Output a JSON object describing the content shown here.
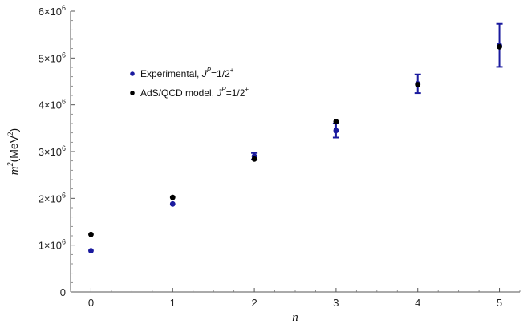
{
  "chart_data": {
    "type": "scatter",
    "title": "",
    "xlabel": "n",
    "ylabel_main": "m",
    "ylabel_sup": "2",
    "ylabel_unit": "(MeV",
    "ylabel_unit_sup": "2",
    "ylabel_close": ")",
    "xlim": [
      -0.25,
      5.25
    ],
    "ylim": [
      0,
      6000000
    ],
    "x_ticks": [
      0,
      1,
      2,
      3,
      4,
      5
    ],
    "x_tick_labels": [
      "0",
      "1",
      "2",
      "3",
      "4",
      "5"
    ],
    "y_ticks": [
      0,
      1000000,
      2000000,
      3000000,
      4000000,
      5000000,
      6000000
    ],
    "y_tick_labels": [
      {
        "mant": "0",
        "sup": ""
      },
      {
        "mant": "1×10",
        "sup": "6"
      },
      {
        "mant": "2×10",
        "sup": "6"
      },
      {
        "mant": "3×10",
        "sup": "6"
      },
      {
        "mant": "4×10",
        "sup": "6"
      },
      {
        "mant": "5×10",
        "sup": "6"
      },
      {
        "mant": "6×10",
        "sup": "6"
      }
    ],
    "grid": false,
    "legend_position": "upper-left",
    "series": [
      {
        "name_parts": {
          "text": "Experimental, ",
          "j": "J",
          "jsup": "P",
          "eq": "=1/2",
          "plus": "+"
        },
        "color": "#1a1a9e",
        "x": [
          0,
          1,
          2,
          3,
          4,
          5
        ],
        "y": [
          880000,
          1880000,
          2900000,
          3450000,
          4450000,
          5270000
        ],
        "err": [
          0,
          0,
          70000,
          150000,
          200000,
          460000
        ]
      },
      {
        "name_parts": {
          "text": "AdS/QCD model, ",
          "j": "J",
          "jsup": "P",
          "eq": "=1/2",
          "plus": "+"
        },
        "color": "#000000",
        "x": [
          0,
          1,
          2,
          3,
          4,
          5
        ],
        "y": [
          1230000,
          2020000,
          2840000,
          3640000,
          4430000,
          5240000
        ],
        "err": [
          0,
          0,
          0,
          0,
          0,
          0
        ]
      }
    ]
  }
}
